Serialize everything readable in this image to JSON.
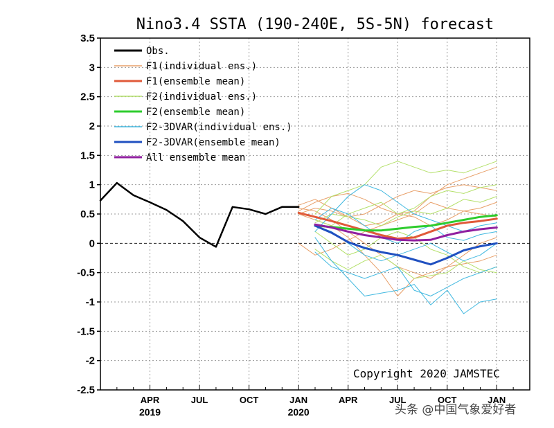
{
  "chart_data": {
    "type": "line",
    "title": "Nino3.4 SSTA (190-240E, 5S-5N) forecast",
    "xlabel": "",
    "ylabel": "",
    "ylim": [
      -2.5,
      3.5
    ],
    "yticks": [
      "3.5",
      "3",
      "2.5",
      "2",
      "1.5",
      "1",
      "0.5",
      "0",
      "-0.5",
      "-1",
      "-1.5",
      "-2",
      "-2.5"
    ],
    "ytick_values": [
      3.5,
      3,
      2.5,
      2,
      1.5,
      1,
      0.5,
      0,
      -0.5,
      -1,
      -1.5,
      -2,
      -2.5
    ],
    "xlim_months": [
      0,
      26
    ],
    "xticks": [
      {
        "month": 3,
        "label": "APR"
      },
      {
        "month": 6,
        "label": "JUL"
      },
      {
        "month": 9,
        "label": "OCT"
      },
      {
        "month": 12,
        "label": "JAN"
      },
      {
        "month": 15,
        "label": "APR"
      },
      {
        "month": 18,
        "label": "JUL"
      },
      {
        "month": 21,
        "label": "OCT"
      },
      {
        "month": 24,
        "label": "JAN"
      }
    ],
    "year_labels": [
      {
        "month": 3,
        "label": "2019"
      },
      {
        "month": 12,
        "label": "2020"
      }
    ],
    "grid": true,
    "zero_line": true,
    "legend": {
      "position": "top-left",
      "entries": [
        {
          "label": "Obs.",
          "color": "#000000",
          "width": 2.5
        },
        {
          "label": "F1(individual ens.)",
          "color": "#e8a06a",
          "width": 1
        },
        {
          "label": "F1(ensemble mean)",
          "color": "#e05a3a",
          "width": 2.5
        },
        {
          "label": "F2(individual ens.)",
          "color": "#b4e06a",
          "width": 1
        },
        {
          "label": "F2(ensemble mean)",
          "color": "#2ecc2e",
          "width": 2.5
        },
        {
          "label": "F2-3DVAR(individual ens.)",
          "color": "#40b8e0",
          "width": 1
        },
        {
          "label": "F2-3DVAR(ensemble mean)",
          "color": "#2050c0",
          "width": 2.5
        },
        {
          "label": "All ensemble mean",
          "color": "#9020a0",
          "width": 2.5
        }
      ]
    },
    "annotation": "Copyright 2020 JAMSTEC",
    "observed": {
      "name": "Obs.",
      "color": "#000000",
      "x": [
        0,
        1,
        2,
        3,
        4,
        5,
        6,
        7,
        8,
        9,
        10,
        11,
        12
      ],
      "y": [
        0.73,
        1.03,
        0.82,
        0.7,
        0.57,
        0.38,
        0.1,
        -0.06,
        0.62,
        0.58,
        0.5,
        0.62,
        0.62
      ]
    },
    "ensemble_means": [
      {
        "name": "F1(ensemble mean)",
        "color": "#e05a3a",
        "x": [
          12,
          13,
          14,
          15,
          16,
          17,
          18,
          19,
          20,
          21,
          22,
          23,
          24
        ],
        "y": [
          0.52,
          0.45,
          0.38,
          0.3,
          0.22,
          0.14,
          0.08,
          0.1,
          0.2,
          0.3,
          0.35,
          0.38,
          0.42
        ]
      },
      {
        "name": "F2(ensemble mean)",
        "color": "#2ecc2e",
        "x": [
          13,
          14,
          15,
          16,
          17,
          18,
          19,
          20,
          21,
          22,
          23,
          24
        ],
        "y": [
          0.3,
          0.28,
          0.25,
          0.22,
          0.22,
          0.25,
          0.28,
          0.3,
          0.35,
          0.4,
          0.45,
          0.48
        ]
      },
      {
        "name": "F2-3DVAR(ensemble mean)",
        "color": "#2050c0",
        "x": [
          13,
          14,
          15,
          16,
          17,
          18,
          19,
          20,
          21,
          22,
          23,
          24
        ],
        "y": [
          0.3,
          0.18,
          0.02,
          -0.08,
          -0.15,
          -0.2,
          -0.28,
          -0.36,
          -0.25,
          -0.12,
          -0.05,
          0.0
        ]
      },
      {
        "name": "All ensemble mean",
        "color": "#9020a0",
        "x": [
          13,
          14,
          15,
          16,
          17,
          18,
          19,
          20,
          21,
          22,
          23,
          24
        ],
        "y": [
          0.32,
          0.27,
          0.2,
          0.14,
          0.1,
          0.06,
          0.05,
          0.06,
          0.14,
          0.2,
          0.24,
          0.27
        ]
      }
    ],
    "individual_ensembles": [
      {
        "group": "F1",
        "color": "#e8a06a",
        "x": [
          12,
          13,
          14,
          15,
          16,
          17,
          18,
          19,
          20,
          21,
          22,
          23,
          24
        ],
        "y": [
          0.55,
          0.7,
          0.8,
          0.85,
          0.75,
          0.6,
          0.5,
          0.55,
          0.8,
          1.0,
          1.1,
          1.2,
          1.3
        ]
      },
      {
        "group": "F1",
        "color": "#e8a06a",
        "x": [
          12,
          13,
          14,
          15,
          16,
          17,
          18,
          19,
          20,
          21,
          22,
          23,
          24
        ],
        "y": [
          0.5,
          0.6,
          0.55,
          0.45,
          0.5,
          0.65,
          0.8,
          0.9,
          0.85,
          0.95,
          1.0,
          0.95,
          0.9
        ]
      },
      {
        "group": "F1",
        "color": "#e8a06a",
        "x": [
          12,
          13,
          14,
          15,
          16,
          17,
          18,
          19,
          20,
          21,
          22,
          23,
          24
        ],
        "y": [
          0.5,
          0.4,
          0.3,
          0.1,
          -0.2,
          -0.5,
          -0.9,
          -0.6,
          -0.5,
          -0.4,
          -0.35,
          -0.3,
          -0.2
        ]
      },
      {
        "group": "F1",
        "color": "#e8a06a",
        "x": [
          12,
          13,
          14,
          15,
          16,
          17,
          18,
          19,
          20,
          21,
          22,
          23,
          24
        ],
        "y": [
          0.0,
          -0.2,
          -0.1,
          0.05,
          0.2,
          0.3,
          0.4,
          0.5,
          0.7,
          0.6,
          0.55,
          0.5,
          0.45
        ]
      },
      {
        "group": "F1",
        "color": "#e8a06a",
        "x": [
          12,
          13,
          14,
          15,
          16,
          17,
          18,
          19,
          20,
          21,
          22,
          23,
          24
        ],
        "y": [
          0.6,
          0.55,
          0.4,
          0.2,
          0.0,
          -0.2,
          -0.4,
          -0.5,
          -0.6,
          -0.4,
          -0.2,
          0.0,
          0.1
        ]
      },
      {
        "group": "F1",
        "color": "#e8a06a",
        "x": [
          12,
          13,
          14,
          15,
          16,
          17,
          18,
          19,
          20,
          21,
          22,
          23,
          24
        ],
        "y": [
          0.65,
          0.75,
          0.6,
          0.45,
          0.3,
          0.35,
          0.5,
          0.45,
          0.3,
          0.4,
          0.55,
          0.6,
          0.7
        ]
      },
      {
        "group": "F2",
        "color": "#b4e06a",
        "x": [
          13,
          14,
          15,
          16,
          17,
          18,
          19,
          20,
          21,
          22,
          23,
          24
        ],
        "y": [
          0.5,
          0.8,
          0.9,
          1.0,
          1.3,
          1.4,
          1.3,
          1.2,
          1.25,
          1.2,
          1.3,
          1.4
        ]
      },
      {
        "group": "F2",
        "color": "#b4e06a",
        "x": [
          13,
          14,
          15,
          16,
          17,
          18,
          19,
          20,
          21,
          22,
          23,
          24
        ],
        "y": [
          0.4,
          0.3,
          0.5,
          0.6,
          0.7,
          0.5,
          0.6,
          0.8,
          0.9,
          0.85,
          0.95,
          1.0
        ]
      },
      {
        "group": "F2",
        "color": "#b4e06a",
        "x": [
          13,
          14,
          15,
          16,
          17,
          18,
          19,
          20,
          21,
          22,
          23,
          24
        ],
        "y": [
          0.2,
          0.0,
          -0.2,
          -0.1,
          0.1,
          0.2,
          0.1,
          -0.1,
          -0.2,
          -0.4,
          -0.5,
          -0.4
        ]
      },
      {
        "group": "F2",
        "color": "#b4e06a",
        "x": [
          13,
          14,
          15,
          16,
          17,
          18,
          19,
          20,
          21,
          22,
          23,
          24
        ],
        "y": [
          -0.1,
          -0.3,
          -0.45,
          -0.3,
          -0.2,
          -0.4,
          -0.6,
          -0.55,
          -0.5,
          -0.3,
          -0.45,
          -0.5
        ]
      },
      {
        "group": "F2",
        "color": "#b4e06a",
        "x": [
          13,
          14,
          15,
          16,
          17,
          18,
          19,
          20,
          21,
          22,
          23,
          24
        ],
        "y": [
          0.35,
          0.5,
          0.45,
          0.4,
          0.3,
          0.45,
          0.55,
          0.5,
          0.6,
          0.75,
          0.7,
          0.8
        ]
      },
      {
        "group": "3DVAR",
        "color": "#40b8e0",
        "x": [
          13,
          14,
          15,
          16,
          17,
          18,
          19,
          20,
          21,
          22,
          23,
          24
        ],
        "y": [
          0.2,
          0.5,
          0.8,
          1.0,
          0.9,
          0.7,
          0.5,
          0.4,
          0.3,
          0.2,
          0.3,
          0.35
        ]
      },
      {
        "group": "3DVAR",
        "color": "#40b8e0",
        "x": [
          13,
          14,
          15,
          16,
          17,
          18,
          19,
          20,
          21,
          22,
          23,
          24
        ],
        "y": [
          0.1,
          -0.3,
          -0.6,
          -0.9,
          -0.85,
          -0.8,
          -0.7,
          -1.05,
          -0.8,
          -1.2,
          -1.0,
          -0.95
        ]
      },
      {
        "group": "3DVAR",
        "color": "#40b8e0",
        "x": [
          13,
          14,
          15,
          16,
          17,
          18,
          19,
          20,
          21,
          22,
          23,
          24
        ],
        "y": [
          -0.15,
          -0.4,
          -0.5,
          -0.6,
          -0.5,
          -0.4,
          -0.8,
          -0.9,
          -0.75,
          -0.6,
          -0.5,
          -0.4
        ]
      },
      {
        "group": "3DVAR",
        "color": "#40b8e0",
        "x": [
          13,
          14,
          15,
          16,
          17,
          18,
          19,
          20,
          21,
          22,
          23,
          24
        ],
        "y": [
          0.3,
          0.2,
          0.0,
          -0.2,
          -0.3,
          -0.2,
          -0.1,
          0.0,
          -0.15,
          -0.3,
          -0.2,
          0.0
        ]
      },
      {
        "group": "3DVAR",
        "color": "#40b8e0",
        "x": [
          13,
          14,
          15,
          16,
          17,
          18,
          19,
          20,
          21,
          22,
          23,
          24
        ],
        "y": [
          0.4,
          0.6,
          0.5,
          0.3,
          0.1,
          0.0,
          0.2,
          0.3,
          0.1,
          0.05,
          0.15,
          0.2
        ]
      }
    ]
  },
  "copyright": "Copyright 2020 JAMSTEC",
  "watermark": "头条 @中国气象爱好者"
}
